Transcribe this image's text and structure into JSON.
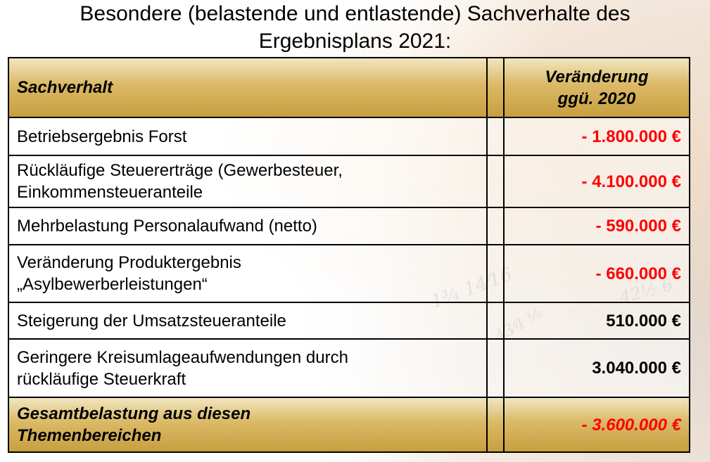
{
  "title_line1": "Besondere (belastende und entlastende) Sachverhalte des",
  "title_line2": "Ergebnisplans 2021:",
  "table": {
    "header": {
      "col1": "Sachverhalt",
      "col3_line1": "Veränderung",
      "col3_line2": "ggü. 2020"
    },
    "rows": [
      {
        "label_line1": "Betriebsergebnis Forst",
        "label_line2": "",
        "value": "- 1.800.000 €",
        "negative": true
      },
      {
        "label_line1": "Rückläufige Steuererträge (Gewerbesteuer,",
        "label_line2": "Einkommensteueranteile",
        "value": "- 4.100.000 €",
        "negative": true
      },
      {
        "label_line1": "Mehrbelastung Personalaufwand (netto)",
        "label_line2": "",
        "value": "- 590.000 €",
        "negative": true
      },
      {
        "label_line1": "Veränderung Produktergebnis",
        "label_line2": "„Asylbewerberleistungen“",
        "value": "- 660.000 €",
        "negative": true
      },
      {
        "label_line1": "Steigerung der Umsatzsteueranteile",
        "label_line2": "",
        "value": "510.000 €",
        "negative": false
      },
      {
        "label_line1": "Geringere Kreisumlageaufwendungen durch",
        "label_line2": "rückläufige Steuerkraft",
        "value": "3.040.000 €",
        "negative": false
      }
    ],
    "total": {
      "label_line1": "Gesamtbelastung aus diesen",
      "label_line2": "Themenbereichen",
      "value": "- 3.600.000 €"
    }
  },
  "colors": {
    "negative": "#ff0000",
    "positive": "#000000",
    "header_gold": "#c79f40"
  }
}
